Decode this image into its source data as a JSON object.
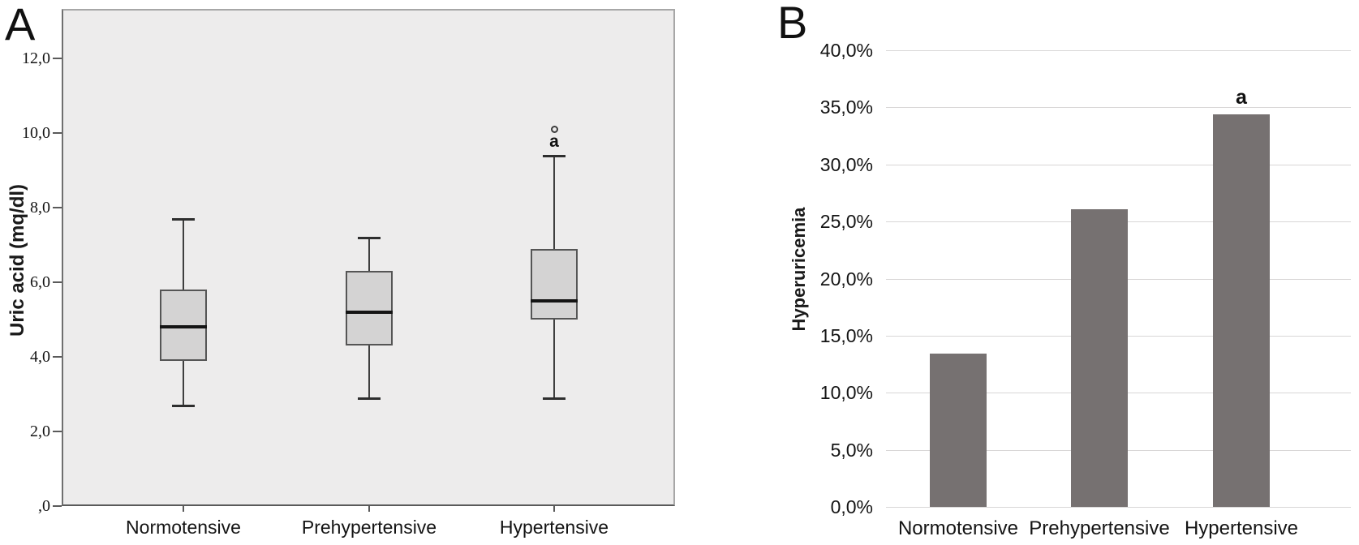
{
  "panels": {
    "a": {
      "label": "A",
      "y_axis_title": "Uric acid (mq/dl)",
      "y_ticks": [
        {
          "label": "12,0",
          "value": 12
        },
        {
          "label": "10,0",
          "value": 10
        },
        {
          "label": "8,0",
          "value": 8
        },
        {
          "label": "6,0",
          "value": 6
        },
        {
          "label": "4,0",
          "value": 4
        },
        {
          "label": "2,0",
          "value": 2
        },
        {
          "label": ",0",
          "value": 0
        }
      ],
      "categories": [
        "Normotensive",
        "Prehypertensive",
        "Hypertensive"
      ]
    },
    "b": {
      "label": "B",
      "y_axis_title": "Hyperuricemia",
      "y_ticks": [
        {
          "label": "40,0%",
          "value": 40
        },
        {
          "label": "35,0%",
          "value": 35
        },
        {
          "label": "30,0%",
          "value": 30
        },
        {
          "label": "25,0%",
          "value": 25
        },
        {
          "label": "20,0%",
          "value": 20
        },
        {
          "label": "15,0%",
          "value": 15
        },
        {
          "label": "10,0%",
          "value": 10
        },
        {
          "label": "5,0%",
          "value": 5
        },
        {
          "label": "0,0%",
          "value": 0
        }
      ],
      "categories": [
        "Normotensive",
        "Prehypertensive",
        "Hypertensive"
      ]
    }
  },
  "chart_data": [
    {
      "type": "boxplot",
      "panel": "A",
      "ylabel": "Uric acid (mq/dl)",
      "ylim": [
        0,
        13
      ],
      "grid": false,
      "categories": [
        "Normotensive",
        "Prehypertensive",
        "Hypertensive"
      ],
      "series": [
        {
          "category": "Normotensive",
          "whisker_low": 2.7,
          "q1": 3.9,
          "median": 4.8,
          "q3": 5.8,
          "whisker_high": 7.7,
          "outliers": [],
          "annotation": ""
        },
        {
          "category": "Prehypertensive",
          "whisker_low": 2.9,
          "q1": 4.3,
          "median": 5.2,
          "q3": 6.3,
          "whisker_high": 7.2,
          "outliers": [],
          "annotation": ""
        },
        {
          "category": "Hypertensive",
          "whisker_low": 2.9,
          "q1": 5.0,
          "median": 5.5,
          "q3": 6.9,
          "whisker_high": 9.4,
          "outliers": [
            10.1
          ],
          "annotation": "a"
        }
      ]
    },
    {
      "type": "bar",
      "panel": "B",
      "ylabel": "Hyperuricemia",
      "ylim": [
        0,
        40
      ],
      "grid": true,
      "categories": [
        "Normotensive",
        "Prehypertensive",
        "Hypertensive"
      ],
      "values": [
        13.4,
        26.1,
        34.4
      ],
      "annotations": [
        {
          "category": "Hypertensive",
          "text": "a"
        }
      ]
    }
  ],
  "colors": {
    "plot_a_background": "#edecec",
    "box_fill": "#d4d3d3",
    "box_border": "#555555",
    "median": "#141414",
    "bar_fill": "#767171",
    "gridline": "#d8d6d6"
  }
}
